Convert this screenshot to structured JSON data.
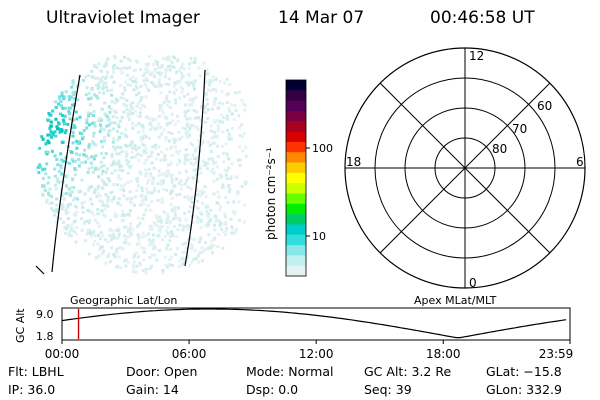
{
  "header": {
    "instrument": "Ultraviolet Imager",
    "date": "14 Mar 07",
    "time": "00:46:58 UT"
  },
  "colorbar": {
    "label": "photon cm⁻²s⁻¹",
    "ticks": [
      "100",
      "10"
    ],
    "colors": [
      "#000033",
      "#330044",
      "#550055",
      "#7a0044",
      "#aa0022",
      "#d90000",
      "#ff3300",
      "#ff8800",
      "#ffcc00",
      "#ffff00",
      "#ccff00",
      "#66ff00",
      "#00ee00",
      "#00cc66",
      "#00cccc",
      "#33dddd",
      "#88e8e8",
      "#c0f0f0",
      "#e4f2f2"
    ]
  },
  "polar_plot": {
    "top_label": "12",
    "left_label": "18",
    "right_label": "6",
    "bottom_label": "0",
    "ring_labels": [
      "60",
      "70",
      "80"
    ]
  },
  "altitude_plot": {
    "y_axis_label": "GC Alt",
    "y_ticks": [
      "9.0",
      "1.8"
    ],
    "left_caption": "Geographic Lat/Lon",
    "right_caption": "Apex MLat/MLT",
    "x_ticks": [
      "00:00",
      "06:00",
      "12:00",
      "18:00",
      "23:59"
    ],
    "current_time_hours": 0.78,
    "marker_color": "#cc0000"
  },
  "info": {
    "flt": "Flt: LBHL",
    "door": "Door: Open",
    "mode": "Mode: Normal",
    "gc_alt": "GC Alt: 3.2 Re",
    "glat": "GLat: −15.8",
    "ip": "IP: 36.0",
    "gain": "Gain: 14",
    "dsp": "Dsp:    0.0",
    "seq": "Seq: 39",
    "glon": "GLon: 332.9"
  }
}
